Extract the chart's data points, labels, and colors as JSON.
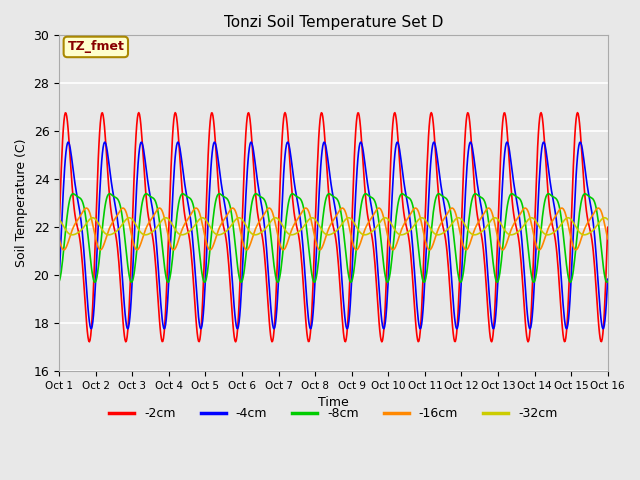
{
  "title": "Tonzi Soil Temperature Set D",
  "xlabel": "Time",
  "ylabel": "Soil Temperature (C)",
  "annotation": "TZ_fmet",
  "ylim": [
    16,
    30
  ],
  "xlim": [
    0,
    15
  ],
  "x_tick_labels": [
    "Oct 1",
    "Oct 2",
    "Oct 3",
    "Oct 4",
    "Oct 5",
    "Oct 6",
    "Oct 7",
    "Oct 8",
    "Oct 9",
    "Oct 10",
    "Oct 11",
    "Oct 12",
    "Oct 13",
    "Oct 14",
    "Oct 15",
    "Oct 16"
  ],
  "series": [
    {
      "label": "-2cm",
      "color": "#ff0000",
      "amplitude": 4.0,
      "amplitude2": 1.5,
      "phase": 0.0,
      "mean": 22.0
    },
    {
      "label": "-4cm",
      "color": "#0000ff",
      "amplitude": 3.5,
      "amplitude2": 1.0,
      "phase": 0.08,
      "mean": 22.0
    },
    {
      "label": "-8cm",
      "color": "#00cc00",
      "amplitude": 1.8,
      "amplitude2": 0.5,
      "phase": 0.22,
      "mean": 22.0
    },
    {
      "label": "-16cm",
      "color": "#ff8800",
      "amplitude": 0.8,
      "amplitude2": 0.2,
      "phase": 0.42,
      "mean": 22.0
    },
    {
      "label": "-32cm",
      "color": "#cccc00",
      "amplitude": 0.35,
      "amplitude2": 0.05,
      "phase": 0.65,
      "mean": 22.0
    }
  ],
  "bg_color": "#e8e8e8",
  "plot_bg_color": "#e8e8e8",
  "linewidth": 1.2,
  "n_points": 800
}
